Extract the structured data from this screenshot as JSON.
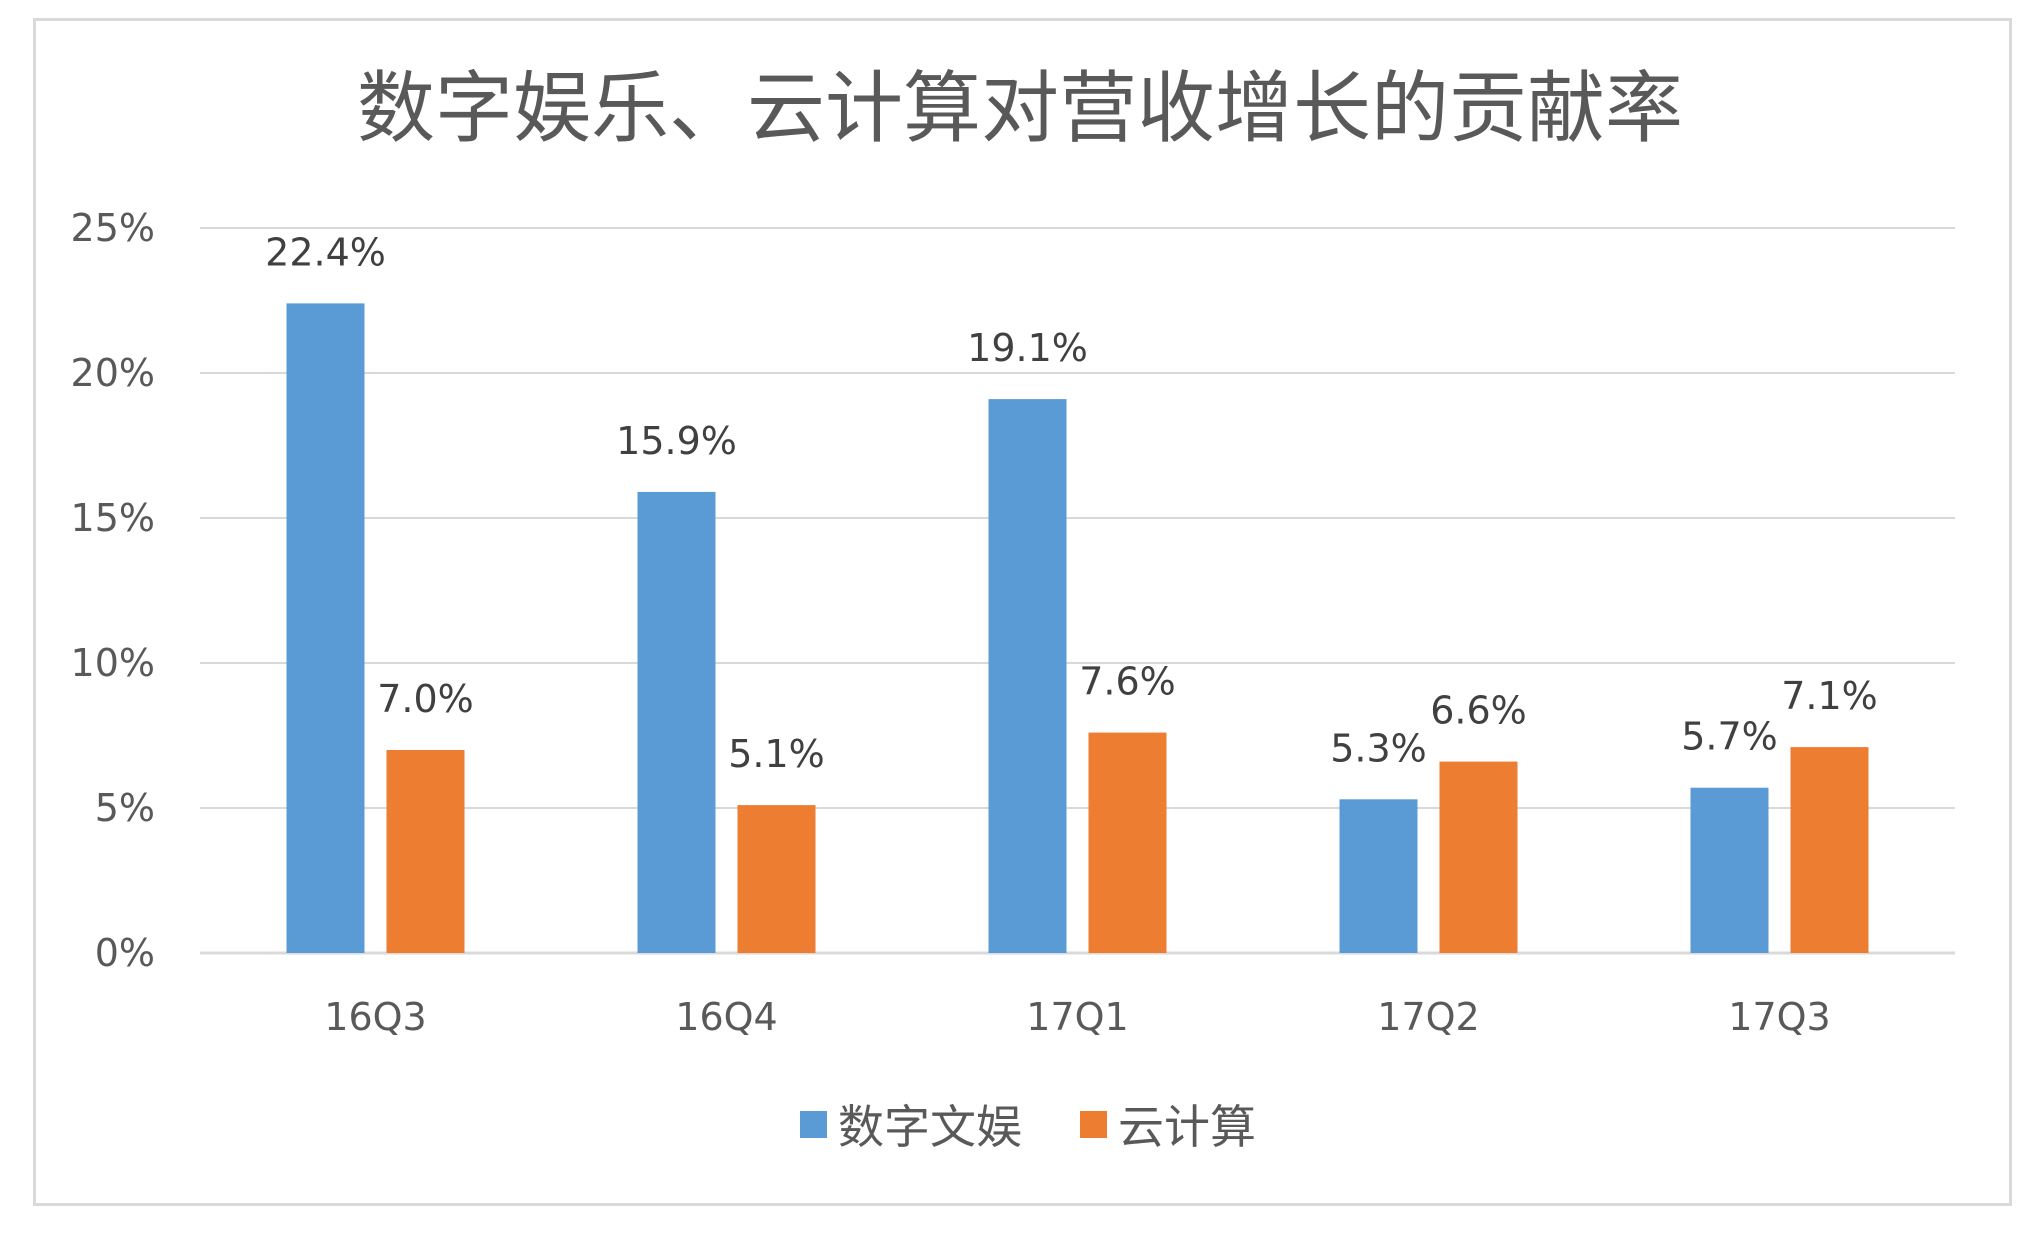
{
  "chart_data": {
    "type": "bar",
    "title": "数字娱乐、云计算对营收增长的贡献率",
    "categories": [
      "16Q3",
      "16Q4",
      "17Q1",
      "17Q2",
      "17Q3"
    ],
    "series": [
      {
        "name": "数字文娱",
        "values": [
          22.4,
          15.9,
          19.1,
          5.3,
          5.7
        ],
        "labels": [
          "22.4%",
          "15.9%",
          "19.1%",
          "5.3%",
          "5.7%"
        ],
        "color": "#5b9bd5"
      },
      {
        "name": "云计算",
        "values": [
          7.0,
          5.1,
          7.6,
          6.6,
          7.1
        ],
        "labels": [
          "7.0%",
          "5.1%",
          "7.6%",
          "6.6%",
          "7.1%"
        ],
        "color": "#ed7d31"
      }
    ],
    "y_ticks": [
      "0%",
      "5%",
      "10%",
      "15%",
      "20%",
      "25%"
    ],
    "ylim": [
      0,
      25
    ],
    "grid": true,
    "legend_position": "bottom",
    "gridline_color": "#d9d9d9"
  }
}
